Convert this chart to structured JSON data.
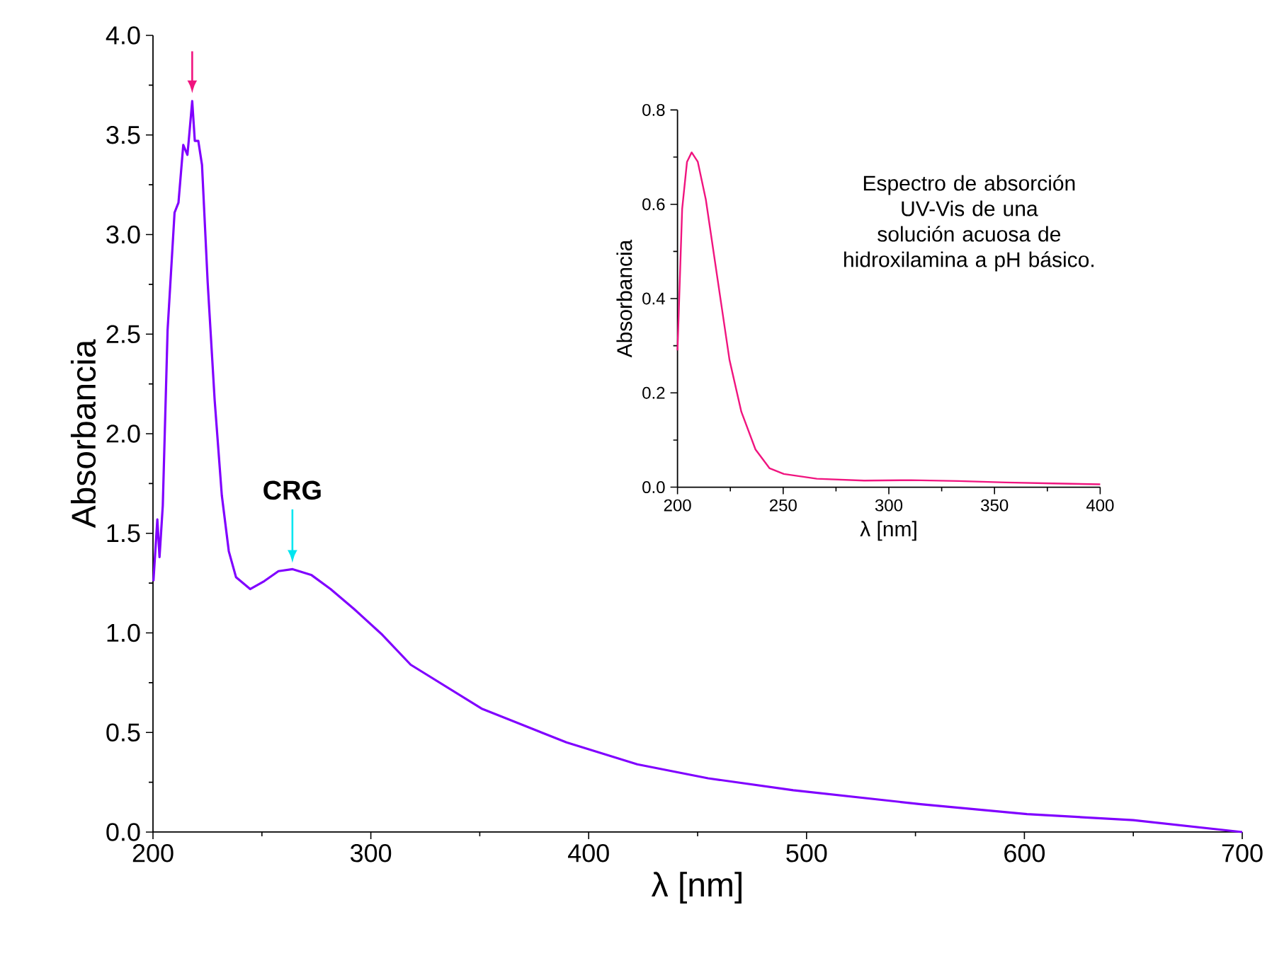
{
  "chart_data": [
    {
      "type": "line",
      "xlabel": "λ [nm]",
      "ylabel": "Absorbancia",
      "xlim": [
        200,
        700
      ],
      "ylim": [
        0,
        4
      ],
      "xticks": [
        200,
        300,
        400,
        500,
        600,
        700
      ],
      "yticks": [
        {
          "value": 0,
          "label": "0.0"
        },
        {
          "value": 0.5,
          "label": "0.5"
        },
        {
          "value": 1,
          "label": "1.0"
        },
        {
          "value": 1.5,
          "label": "1.5"
        },
        {
          "value": 2,
          "label": "2.0"
        },
        {
          "value": 2.5,
          "label": "2.5"
        },
        {
          "value": 3,
          "label": "3.0"
        },
        {
          "value": 3.5,
          "label": "3.5"
        },
        {
          "value": 4,
          "label": "4.0"
        }
      ],
      "annotations": [
        {
          "text": "CRG",
          "x": 264,
          "y": 1.32
        }
      ],
      "series": [
        {
          "color": "#8000ff",
          "x": [
            200.2,
            202,
            203,
            204.5,
            206.7,
            209.9,
            211.7,
            213.9,
            215.8,
            216.4,
            218,
            219.2,
            220.8,
            222.5,
            225.1,
            228.3,
            231.6,
            234.8,
            238.1,
            244.6,
            251.1,
            257.6,
            264.1,
            272.8,
            281.5,
            292.3,
            305.3,
            318.3,
            350.8,
            389.8,
            422.3,
            454.8,
            493.9,
            552.4,
            601.2,
            649.9,
            700
          ],
          "values": [
            1.26,
            1.57,
            1.38,
            1.64,
            2.52,
            3.11,
            3.16,
            3.45,
            3.4,
            3.47,
            3.67,
            3.47,
            3.47,
            3.35,
            2.76,
            2.17,
            1.69,
            1.41,
            1.28,
            1.22,
            1.26,
            1.31,
            1.32,
            1.29,
            1.22,
            1.12,
            0.99,
            0.84,
            0.62,
            0.45,
            0.34,
            0.27,
            0.21,
            0.14,
            0.09,
            0.06,
            0.0
          ]
        }
      ]
    },
    {
      "type": "line",
      "xlabel": "λ [nm]",
      "ylabel": "Absorbancia",
      "xlim": [
        200,
        400
      ],
      "ylim": [
        0,
        0.8
      ],
      "xticks": [
        200,
        250,
        300,
        350,
        400
      ],
      "yticks": [
        {
          "value": 0,
          "label": "0.0"
        },
        {
          "value": 0.2,
          "label": "0.2"
        },
        {
          "value": 0.4,
          "label": "0.4"
        },
        {
          "value": 0.6,
          "label": "0.6"
        },
        {
          "value": 0.8,
          "label": "0.8"
        }
      ],
      "annotations": [
        "Espectro de absorción UV-Vis de una solución acuosa de hidroxilamina a pH básico."
      ],
      "series": [
        {
          "color": "#f0147f",
          "x": [
            200,
            202.2,
            204.5,
            206.7,
            209.6,
            213.4,
            219,
            224.6,
            230.2,
            236.9,
            243.6,
            250.3,
            265.9,
            288.3,
            310.6,
            333,
            355.3,
            377.7,
            400
          ],
          "values": [
            0.29,
            0.59,
            0.69,
            0.71,
            0.69,
            0.61,
            0.44,
            0.27,
            0.16,
            0.08,
            0.04,
            0.028,
            0.018,
            0.014,
            0.015,
            0.013,
            0.01,
            0.008,
            0.006
          ]
        }
      ]
    }
  ]
}
